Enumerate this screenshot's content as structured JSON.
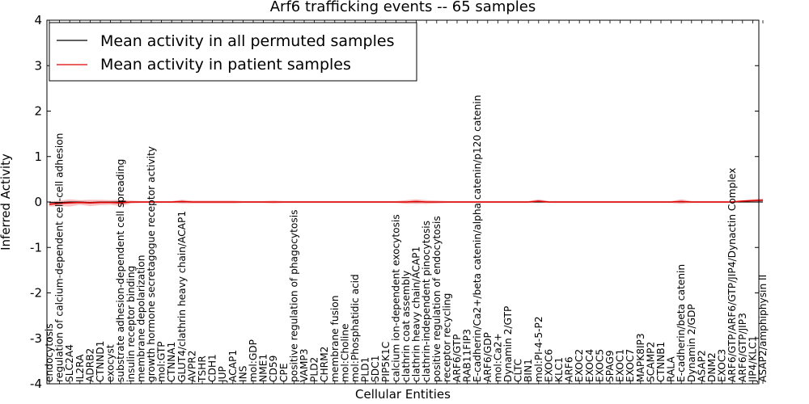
{
  "chart_data": {
    "type": "line",
    "title": "Arf6 trafficking events -- 65 samples",
    "xlabel": "Cellular Entities",
    "ylabel": "Inferred Activity",
    "ylim": [
      -4,
      4
    ],
    "yticks": [
      -4,
      -3,
      -2,
      -1,
      0,
      1,
      2,
      3,
      4
    ],
    "legend_position": "top-left",
    "colors": {
      "permuted": "#000000",
      "patient": "#e00000",
      "patient_band": "#f28c8c",
      "permuted_band": "#bbbbbb"
    },
    "categories": [
      "endocytosis",
      "regulation of calcium-dependent cell-cell adhesion",
      "SLC2A4",
      "IL2RA",
      "ADRB2",
      "CTNND1",
      "exocyst",
      "substrate adhesion-dependent cell spreading",
      "insulin receptor binding",
      "membrane depolarization",
      "growth hormone secretagogue receptor activity",
      "mol:GTP",
      "CTNNA1",
      "GLUT4/clathrin heavy chain/ACAP1",
      "AVPR2",
      "TSHR",
      "CDH1",
      "JUP",
      "ACAP1",
      "INS",
      "mol:GDP",
      "NME1",
      "CD59",
      "CPE",
      "positive regulation of phagocytosis",
      "VAMP3",
      "PLD2",
      "CHRM2",
      "membrane fusion",
      "mol:Choline",
      "mol:Phosphatidic acid",
      "PLD1",
      "SDC1",
      "PIP5K1C",
      "calcium ion-dependent exocytosis",
      "clathrin coat assembly",
      "clathrin heavy chain/ACAP1",
      "clathrin-independent pinocytosis",
      "positive regulation of endocytosis",
      "receptor recycling",
      "ARF6/GTP",
      "RAB11FIP3",
      "E-cadherin/Ca2+/beta catenin/alpha catenin/p120 catenin",
      "ARF6/GDP",
      "mol:Ca2+",
      "Dynamin 2/GTP",
      "CLTC",
      "BIN1",
      "mol:PI-4-5-P2",
      "EXOC6",
      "KLC1",
      "ARF6",
      "EXOC2",
      "EXOC4",
      "EXOC5",
      "SPAG9",
      "EXOC1",
      "EXOC7",
      "MAPK8IP3",
      "SCAMP2",
      "CTNNB1",
      "RALA",
      "E-cadherin/beta catenin",
      "Dynamin 2/GDP",
      "ASAP2",
      "DNM2",
      "EXOC3",
      "ARF6/GTP/ARF6/GTP/JIP4/Dynactin Complex",
      "ARF6/GTP/JIP3",
      "JIP4/KLC1",
      "ASAP2/amphiphysin II"
    ],
    "series": [
      {
        "name": "Mean activity in all permuted samples",
        "color": "#000000",
        "values": [
          -0.01,
          -0.01,
          0,
          0,
          -0.01,
          0,
          0,
          0,
          0,
          0,
          0,
          0,
          0,
          0,
          0,
          0,
          0,
          0,
          0,
          0,
          0,
          0,
          0,
          0,
          0,
          0,
          0,
          0,
          0,
          0,
          0,
          0,
          0,
          0,
          0,
          0,
          0,
          0,
          0,
          0,
          0,
          0,
          0,
          0,
          0,
          0,
          0,
          0,
          0,
          0,
          0,
          0,
          0,
          0,
          0,
          0,
          0,
          0,
          0,
          0,
          0,
          0,
          0,
          0,
          0,
          0,
          0,
          0,
          0,
          0,
          0
        ],
        "band": [
          0.03,
          0.03,
          0.02,
          0.03,
          0.03,
          0.02,
          0.02,
          0.02,
          0.02,
          0.02,
          0.02,
          0.02,
          0.02,
          0.02,
          0.02,
          0.02,
          0.02,
          0.02,
          0.02,
          0.02,
          0.02,
          0.02,
          0.02,
          0.02,
          0.02,
          0.02,
          0.02,
          0.02,
          0.02,
          0.02,
          0.02,
          0.02,
          0.02,
          0.02,
          0.02,
          0.02,
          0.02,
          0.02,
          0.02,
          0.02,
          0.02,
          0.02,
          0.02,
          0.02,
          0.02,
          0.02,
          0.02,
          0.02,
          0.02,
          0.02,
          0.02,
          0.02,
          0.02,
          0.02,
          0.02,
          0.02,
          0.02,
          0.02,
          0.02,
          0.02,
          0.02,
          0.02,
          0.02,
          0.02,
          0.02,
          0.02,
          0.02,
          0.02,
          0.02,
          0.02,
          0.02
        ]
      },
      {
        "name": "Mean activity in patient samples",
        "color": "#e00000",
        "values": [
          -0.05,
          -0.03,
          -0.02,
          -0.01,
          -0.02,
          -0.01,
          -0.01,
          -0.02,
          0,
          0,
          0,
          0,
          0,
          0.01,
          0,
          0,
          0,
          0,
          0,
          0,
          0,
          0,
          0,
          0,
          0,
          0,
          0,
          0,
          0,
          0,
          0,
          0,
          0,
          0,
          0,
          0,
          0.01,
          0,
          0,
          0,
          0,
          0,
          0,
          0,
          0,
          0,
          0,
          0,
          0.02,
          0,
          0,
          0,
          0,
          0,
          0,
          0,
          0,
          0,
          0,
          0,
          0,
          0,
          0.01,
          0,
          0,
          0,
          0,
          0,
          0.02,
          0.03,
          0.04
        ],
        "band": [
          0.05,
          0.06,
          0.08,
          0.05,
          0.07,
          0.06,
          0.05,
          0.07,
          0.03,
          0.02,
          0.02,
          0.02,
          0.02,
          0.04,
          0.03,
          0.03,
          0.03,
          0.03,
          0.03,
          0.02,
          0.02,
          0.02,
          0.03,
          0.02,
          0.02,
          0.02,
          0.02,
          0.02,
          0.02,
          0.02,
          0.02,
          0.02,
          0.02,
          0.02,
          0.02,
          0.04,
          0.05,
          0.04,
          0.03,
          0.02,
          0.02,
          0.02,
          0.02,
          0.02,
          0.02,
          0.02,
          0.02,
          0.02,
          0.04,
          0.02,
          0.02,
          0.02,
          0.02,
          0.02,
          0.02,
          0.02,
          0.02,
          0.02,
          0.02,
          0.02,
          0.02,
          0.02,
          0.05,
          0.02,
          0.02,
          0.02,
          0.02,
          0.02,
          0.02,
          0.03,
          0.04
        ]
      }
    ]
  }
}
